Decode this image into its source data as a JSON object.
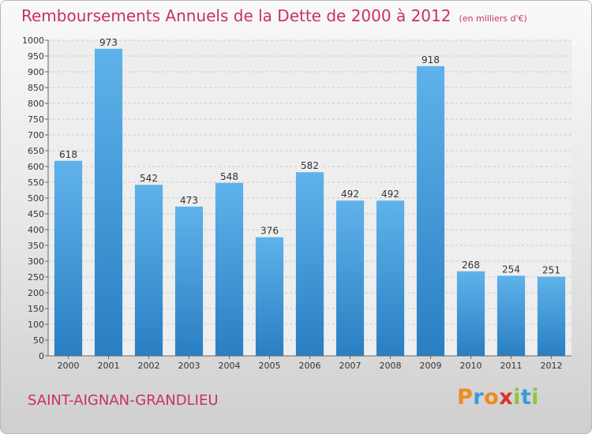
{
  "header": {
    "title": "Remboursements Annuels de la Dette de 2000 à 2012",
    "subtitle": "(en milliers d'€)"
  },
  "footer": {
    "commune": "SAINT-AIGNAN-GRANDLIEU",
    "logo_text": "Proxiti"
  },
  "colors": {
    "bar_top": "#5fb2ea",
    "bar_bottom": "#2a7fc3",
    "accent_text": "#c8306a",
    "logo_letters": [
      "#f08a1c",
      "#3a9ad9",
      "#f08a1c",
      "#d9302a",
      "#8dc63f",
      "#3a9ad9",
      "#8dc63f"
    ]
  },
  "chart_data": {
    "type": "bar",
    "categories": [
      "2000",
      "2001",
      "2002",
      "2003",
      "2004",
      "2005",
      "2006",
      "2007",
      "2008",
      "2009",
      "2010",
      "2011",
      "2012"
    ],
    "values": [
      618,
      973,
      542,
      473,
      548,
      376,
      582,
      492,
      492,
      918,
      268,
      254,
      251
    ],
    "title": "Remboursements Annuels de la Dette de 2000 à 2012",
    "xlabel": "",
    "ylabel": "",
    "ylim": [
      0,
      1000
    ],
    "ytick_step": 50,
    "grid": true,
    "legend": "none"
  }
}
